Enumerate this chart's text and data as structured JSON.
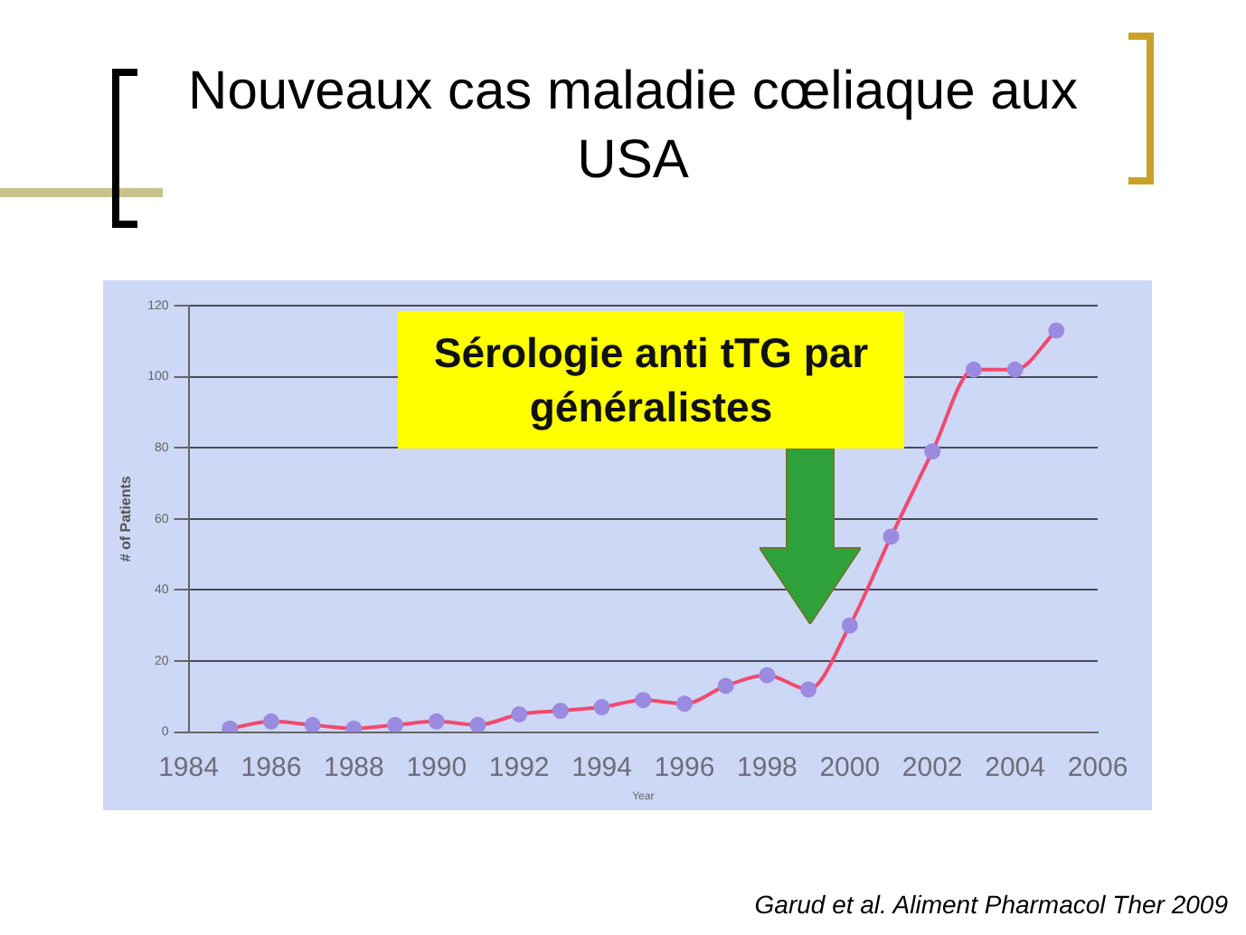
{
  "chart_data": {
    "type": "line",
    "title": "Nouveaux cas maladie cœliaque aux USA",
    "xlabel": "Year",
    "ylabel": "# of Patients",
    "x": [
      1985,
      1986,
      1987,
      1988,
      1989,
      1990,
      1991,
      1992,
      1993,
      1994,
      1995,
      1996,
      1997,
      1998,
      1999,
      2000,
      2001,
      2002,
      2003,
      2004,
      2005
    ],
    "series": [
      {
        "color": "#f04a6e",
        "values": [
          1,
          3,
          2,
          1,
          2,
          3,
          2,
          5,
          6,
          7,
          9,
          8,
          13,
          16,
          12,
          30,
          55,
          79,
          102,
          102,
          113
        ]
      }
    ],
    "xlim": [
      1984,
      2006
    ],
    "xticks": [
      1984,
      1986,
      1988,
      1990,
      1992,
      1994,
      1996,
      1998,
      2000,
      2002,
      2004,
      2006
    ],
    "ylim": [
      0,
      120
    ],
    "yticks": [
      0,
      20,
      40,
      60,
      80,
      100,
      120
    ],
    "grid": "y",
    "marker": "circle",
    "line_style": "solid",
    "legend": false,
    "annotations": [
      "Sérologie anti tTG par généralistes",
      "Garud et al. Aliment Pharmacol Ther 2009"
    ]
  }
}
